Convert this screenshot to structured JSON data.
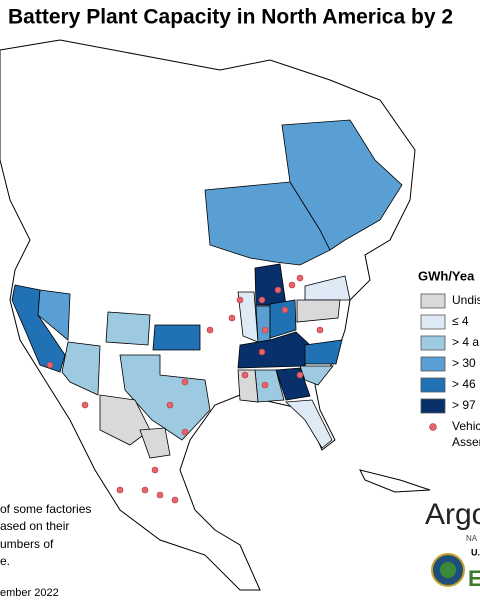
{
  "title": "Battery Plant Capacity in North America by 2",
  "legend": {
    "title": "GWh/Yea",
    "items": [
      {
        "label": "Undis",
        "color": "#d9d9d9",
        "shape": "square"
      },
      {
        "label": "≤ 4",
        "color": "#deebf7",
        "shape": "square"
      },
      {
        "label": "> 4 a",
        "color": "#9ecae1",
        "shape": "square"
      },
      {
        "label": "> 30",
        "color": "#5a9fd4",
        "shape": "square"
      },
      {
        "label": "> 46",
        "color": "#2171b5",
        "shape": "square"
      },
      {
        "label": "> 97",
        "color": "#08306b",
        "shape": "square"
      },
      {
        "label": "Vehic",
        "label2": "Asser",
        "color": "#e8646a",
        "shape": "circle"
      }
    ]
  },
  "note": {
    "lines": [
      "of some factories",
      "ased on their",
      "umbers of",
      "e."
    ]
  },
  "date": "ember 2022",
  "logos": {
    "argonne": "Argo",
    "argonne_sub": "NA",
    "doe": "U.",
    "doe_mark": "E"
  }
}
